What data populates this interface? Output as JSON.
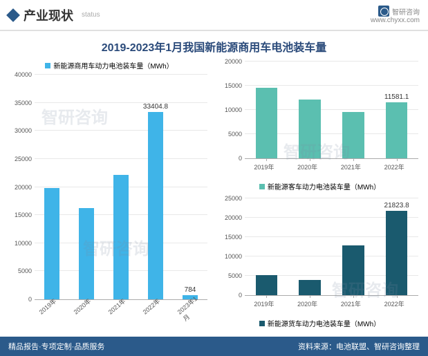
{
  "header": {
    "title": "产业现状",
    "subtitle": "status",
    "brand": "智研咨询",
    "site": "www.chyxx.com"
  },
  "main_title": "2019-2023年1月我国新能源商用车电池装车量",
  "watermark": "智研咨询",
  "left_chart": {
    "legend": "新能源商用车动力电池装车量（MWh）",
    "legend_color": "#3fb4e8",
    "type": "bar",
    "bar_color": "#3fb4e8",
    "bar_width": 0.45,
    "categories": [
      "2019年",
      "2020年",
      "2021年",
      "2022年",
      "2023年1月"
    ],
    "values": [
      19800,
      16200,
      22100,
      33404.8,
      784
    ],
    "labels": [
      "",
      "",
      "",
      "33404.8",
      "784"
    ],
    "ylim": [
      0,
      40000
    ],
    "ytick_step": 5000,
    "grid_color": "#e8e8e8",
    "label_fontsize": 10,
    "tick_fontsize": 9
  },
  "top_right": {
    "legend": "新能源客车动力电池装车量（MWh）",
    "legend_color": "#5bbfb0",
    "type": "bar",
    "bar_color": "#5bbfb0",
    "bar_width": 0.5,
    "categories": [
      "2019年",
      "2020年",
      "2021年",
      "2022年"
    ],
    "values": [
      14600,
      12200,
      9600,
      11581.1
    ],
    "labels": [
      "",
      "",
      "",
      "11581.1"
    ],
    "ylim": [
      0,
      20000
    ],
    "ytick_step": 5000,
    "grid_color": "#e8e8e8"
  },
  "bottom_right": {
    "legend": "新能源货车动力电池装车量（MWh）",
    "legend_color": "#1a5a6e",
    "type": "bar",
    "bar_color": "#1a5a6e",
    "bar_width": 0.5,
    "categories": [
      "2019年",
      "2020年",
      "2021年",
      "2022年"
    ],
    "values": [
      5200,
      3900,
      12800,
      21823.8
    ],
    "labels": [
      "",
      "",
      "",
      "21823.8"
    ],
    "ylim": [
      0,
      25000
    ],
    "ytick_step": 5000,
    "grid_color": "#e8e8e8"
  },
  "footer": {
    "left": "精品报告·专项定制·品质服务",
    "right": "资料来源：电池联盟、智研咨询整理"
  }
}
